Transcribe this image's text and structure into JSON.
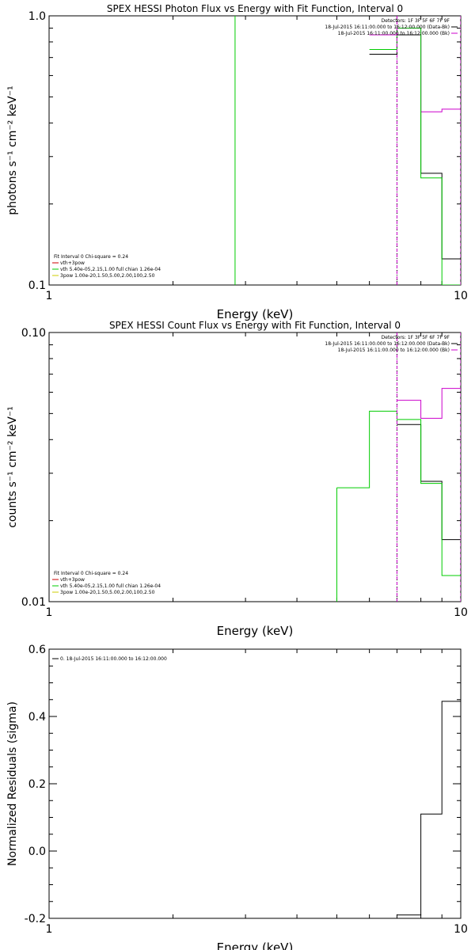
{
  "chart_data": [
    {
      "type": "line",
      "title": "SPEX HESSI Photon Flux vs Energy with Fit Function, Interval 0",
      "xlabel": "Energy (keV)",
      "ylabel": "photons s⁻¹ cm⁻² keV⁻¹",
      "xscale": "log",
      "yscale": "log",
      "xlim": [
        1,
        10
      ],
      "ylim": [
        0.1,
        1.0
      ],
      "xticklabels": [
        {
          "v": 1,
          "t": "1"
        },
        {
          "v": 10,
          "t": "10"
        }
      ],
      "yticklabels": [
        {
          "v": 0.1,
          "t": "0.1"
        },
        {
          "v": 1.0,
          "t": "1.0"
        }
      ],
      "legend_right": [
        {
          "text": "Detectors: 1F 3F 5F 6F 7F 9F",
          "color": ""
        },
        {
          "text": "18-Jul-2015 16:11:00.000 to 16:12:00.000 (Data-Bk)",
          "color": "#000000"
        },
        {
          "text": "18-Jul-2015 16:11:00.000 to 16:12:00.000 (Bk)",
          "color": "#cc00cc"
        }
      ],
      "legend_left": [
        {
          "text": "Fit Interval 0   Chi-square = 0.24",
          "color": ""
        },
        {
          "text": "vth+3pow",
          "color": "#cc0000"
        },
        {
          "text": "vth 5.40e-05,2.15,1.00  full chian 1.26e-04",
          "color": "#00cc00"
        },
        {
          "text": "3pow 1.00e-20,1.50,5.00,2.00,100,2.50",
          "color": "#cccc00"
        }
      ],
      "series": [
        {
          "color": "#000000",
          "edges": [
            6,
            7,
            8,
            9,
            10
          ],
          "values": [
            0.72,
            0.85,
            0.26,
            0.125
          ],
          "mode": "step"
        },
        {
          "color": "#cc00cc",
          "edges": [
            6,
            7,
            8,
            9,
            10
          ],
          "values": [
            0.85,
            0.9,
            0.44,
            0.45
          ],
          "mode": "step"
        },
        {
          "color": "#00cc00",
          "edges": [
            6,
            7,
            8,
            9,
            10
          ],
          "values": [
            0.75,
            0.9,
            0.25,
            0.05
          ],
          "mode": "step"
        },
        {
          "color": "#00cc00",
          "x": [
            2.83,
            2.83
          ],
          "y": [
            0.1,
            1.0
          ],
          "mode": "line"
        },
        {
          "color": "#000000",
          "x": [
            7,
            7
          ],
          "y": [
            0.1,
            1.0
          ],
          "mode": "dotted"
        },
        {
          "color": "#cc00cc",
          "x": [
            7,
            7
          ],
          "y": [
            0.1,
            1.0
          ],
          "mode": "dashed"
        },
        {
          "color": "#cc00cc",
          "x": [
            10,
            10
          ],
          "y": [
            0.1,
            1.0
          ],
          "mode": "dashed"
        }
      ]
    },
    {
      "type": "line",
      "title": "SPEX HESSI Count Flux vs Energy with Fit Function, Interval 0",
      "xlabel": "Energy (keV)",
      "ylabel": "counts s⁻¹ cm⁻² keV⁻¹",
      "xscale": "log",
      "yscale": "log",
      "xlim": [
        1,
        10
      ],
      "ylim": [
        0.01,
        0.1
      ],
      "xticklabels": [
        {
          "v": 1,
          "t": "1"
        },
        {
          "v": 10,
          "t": "10"
        }
      ],
      "yticklabels": [
        {
          "v": 0.01,
          "t": "0.01"
        },
        {
          "v": 0.1,
          "t": "0.10"
        }
      ],
      "legend_right": [
        {
          "text": "Detectors: 1F 3F 5F 6F 7F 9F",
          "color": ""
        },
        {
          "text": "18-Jul-2015 16:11:00.000 to 16:12:00.000 (Data-Bk)",
          "color": "#000000"
        },
        {
          "text": "18-Jul-2015 16:11:00.000 to 16:12:00.000 (Bk)",
          "color": "#cc00cc"
        }
      ],
      "legend_left": [
        {
          "text": "Fit Interval 0   Chi-square = 0.24",
          "color": ""
        },
        {
          "text": "vth+3pow",
          "color": "#cc0000"
        },
        {
          "text": "vth 5.40e-05,2.15,1.00  full chian 1.26e-04",
          "color": "#00cc00"
        },
        {
          "text": "3pow 1.00e-20,1.50,5.00,2.00,100,2.50",
          "color": "#cccc00"
        }
      ],
      "series": [
        {
          "color": "#000000",
          "edges": [
            7,
            8,
            9,
            10
          ],
          "values": [
            0.0455,
            0.028,
            0.017
          ],
          "mode": "step"
        },
        {
          "color": "#cc00cc",
          "edges": [
            7,
            8,
            9,
            10
          ],
          "values": [
            0.056,
            0.048,
            0.062
          ],
          "mode": "step"
        },
        {
          "color": "#00cc00",
          "edges": [
            5,
            6,
            7,
            8,
            9,
            10
          ],
          "values": [
            0.0265,
            0.051,
            0.0475,
            0.0275,
            0.0125
          ],
          "mode": "step"
        },
        {
          "color": "#00cc00",
          "x": [
            5,
            5
          ],
          "y": [
            0.01,
            0.0265
          ],
          "mode": "line"
        },
        {
          "color": "#000000",
          "x": [
            7,
            7
          ],
          "y": [
            0.01,
            0.1
          ],
          "mode": "dotted"
        },
        {
          "color": "#cc00cc",
          "x": [
            7,
            7
          ],
          "y": [
            0.01,
            0.1
          ],
          "mode": "dashed"
        },
        {
          "color": "#cc00cc",
          "x": [
            10,
            10
          ],
          "y": [
            0.01,
            0.1
          ],
          "mode": "dashed"
        }
      ]
    },
    {
      "type": "line",
      "title": "",
      "xlabel": "Energy (keV)",
      "ylabel": "Normalized Residuals (sigma)",
      "xscale": "log",
      "yscale": "linear",
      "xlim": [
        1,
        10
      ],
      "ylim": [
        -0.2,
        0.6
      ],
      "xticklabels": [
        {
          "v": 1,
          "t": "1"
        },
        {
          "v": 10,
          "t": "10"
        }
      ],
      "yticklabels": [
        {
          "v": -0.2,
          "t": "-0.2"
        },
        {
          "v": 0.0,
          "t": "0.0"
        },
        {
          "v": 0.2,
          "t": "0.2"
        },
        {
          "v": 0.4,
          "t": "0.4"
        },
        {
          "v": 0.6,
          "t": "0.6"
        }
      ],
      "legend_right": [],
      "legend_left": [
        {
          "text": "0. 18-Jul-2015 16:11:00.000 to 16:12:00.000",
          "color": "#000000"
        }
      ],
      "series": [
        {
          "color": "#000000",
          "edges": [
            7,
            8,
            9,
            10
          ],
          "values": [
            -0.19,
            0.11,
            0.445
          ],
          "mode": "step"
        }
      ]
    }
  ]
}
